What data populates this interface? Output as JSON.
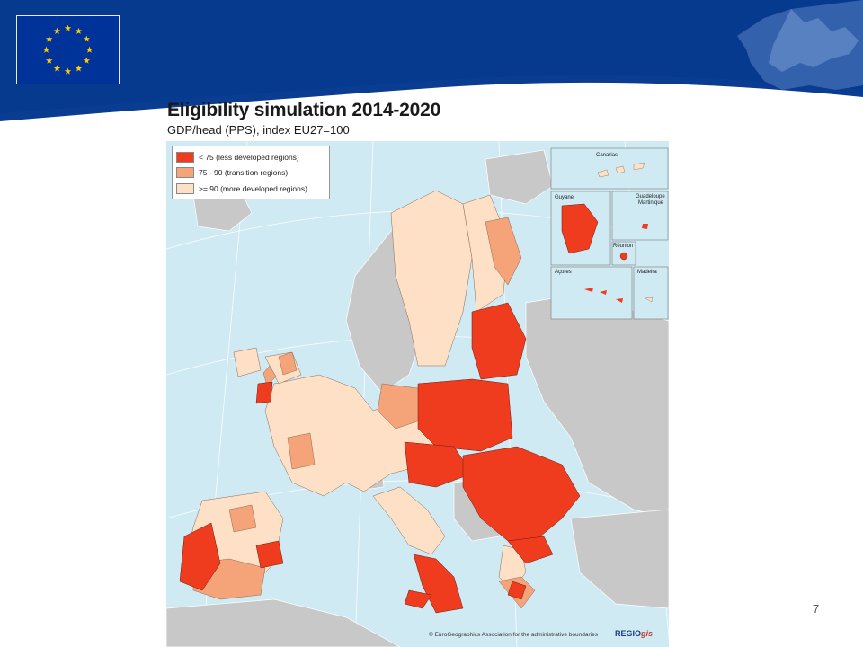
{
  "slide": {
    "title": "Eligibility simulation 2014-2020",
    "subtitle": "GDP/head (PPS), index EU27=100",
    "page_number": "7"
  },
  "legend": {
    "items": [
      {
        "label": "< 75 (less developed regions)",
        "color": "#f03c1e"
      },
      {
        "label": "75 - 90 (transition regions)",
        "color": "#f5a47a"
      },
      {
        "label": ">= 90 (more developed regions)",
        "color": "#fde0c5"
      }
    ]
  },
  "insets": {
    "canarias": "Canarias",
    "guyane": "Guyane",
    "guadeloupe": "Guadeloupe",
    "martinique": "Martinique",
    "reunion": "Réunion",
    "acores": "Açores",
    "madeira": "Madeira"
  },
  "footer": {
    "copyright": "© EuroGeographics Association for the administrative boundaries",
    "logo_main": "REGIO",
    "logo_suffix": "gis"
  },
  "colors": {
    "header_blue": "#003a8c",
    "sea": "#cfeaf3",
    "non_eu_land": "#c8c8c8"
  }
}
